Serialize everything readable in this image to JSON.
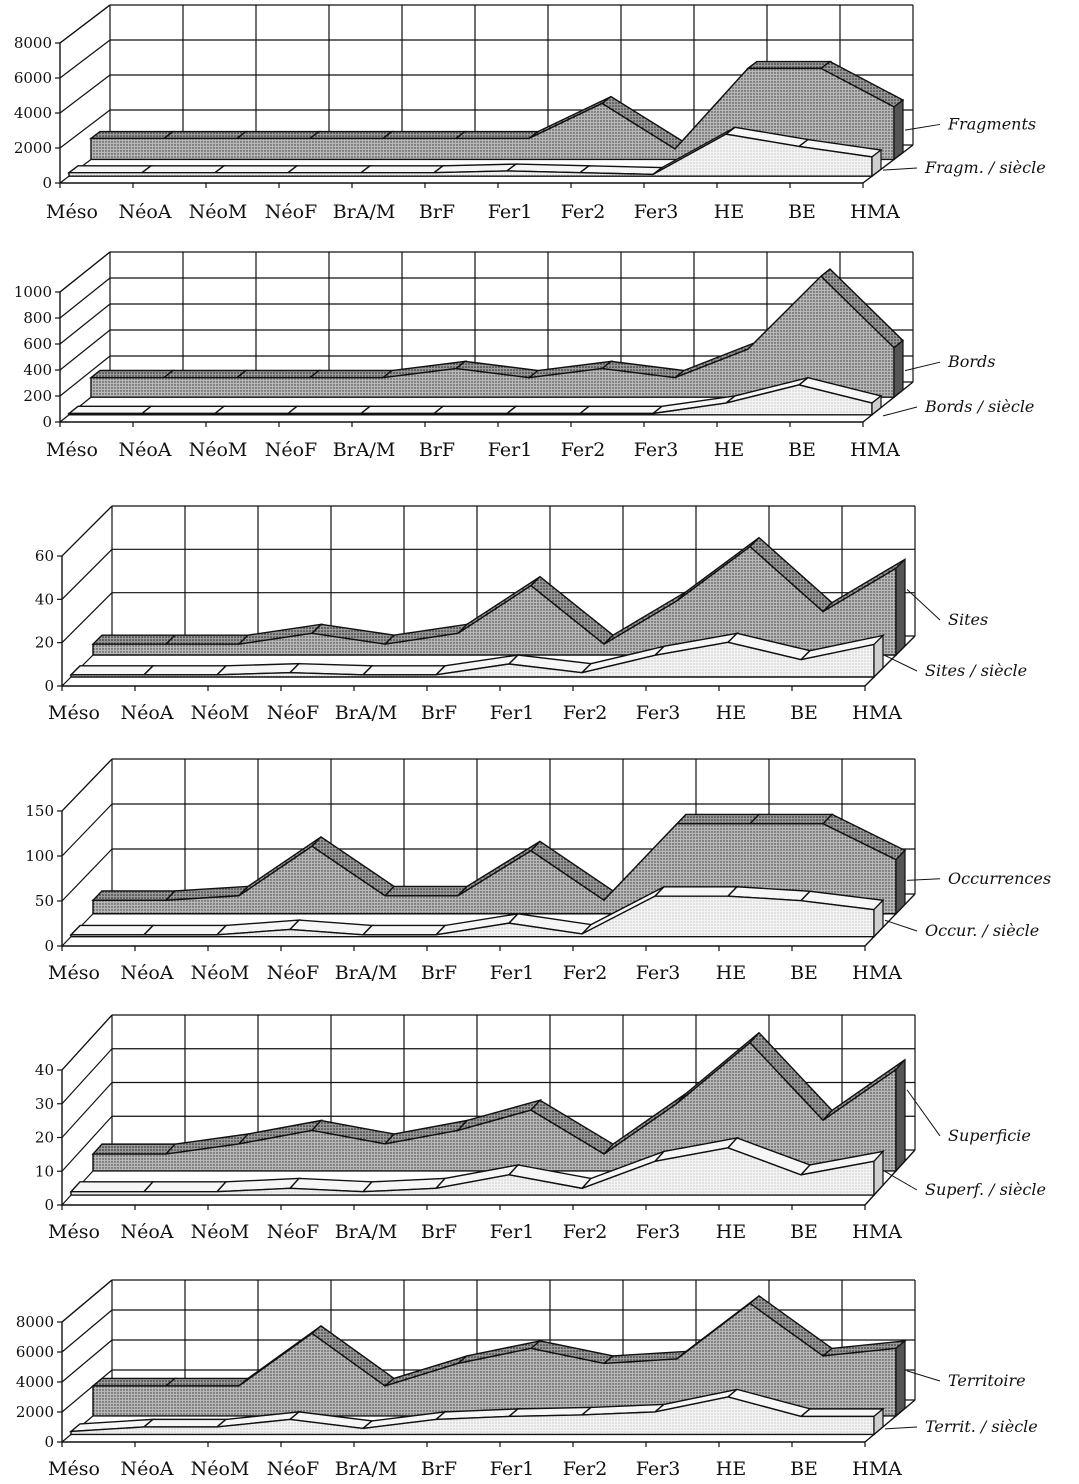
{
  "chart_data": [
    {
      "type": "area",
      "categories": [
        "Méso",
        "NéoA",
        "NéoM",
        "NéoF",
        "BrA/M",
        "BrF",
        "Fer1",
        "Fer2",
        "Fer3",
        "HE",
        "BE",
        "HMA"
      ],
      "yticks": [
        "0",
        "2000",
        "4000",
        "6000",
        "8000"
      ],
      "ylim": [
        0,
        8000
      ],
      "series": [
        {
          "name": "Fragments",
          "values": [
            1200,
            1200,
            1200,
            1200,
            1200,
            1200,
            1200,
            3200,
            600,
            5200,
            5200,
            3000
          ]
        },
        {
          "name": "Fragm. / siècle",
          "values": [
            200,
            200,
            200,
            200,
            200,
            200,
            300,
            200,
            100,
            2400,
            1700,
            1100
          ]
        }
      ]
    },
    {
      "type": "area",
      "categories": [
        "Méso",
        "NéoA",
        "NéoM",
        "NéoF",
        "BrA/M",
        "BrF",
        "Fer1",
        "Fer2",
        "Fer3",
        "HE",
        "BE",
        "HMA"
      ],
      "yticks": [
        "0",
        "200",
        "400",
        "600",
        "800",
        "1000"
      ],
      "ylim": [
        0,
        1000
      ],
      "series": [
        {
          "name": "Bords",
          "values": [
            150,
            150,
            150,
            150,
            150,
            220,
            150,
            220,
            150,
            370,
            930,
            380
          ]
        },
        {
          "name": "Bords / siècle",
          "values": [
            10,
            10,
            10,
            10,
            10,
            10,
            10,
            10,
            10,
            90,
            230,
            90
          ]
        }
      ]
    },
    {
      "type": "area",
      "categories": [
        "Méso",
        "NéoA",
        "NéoM",
        "NéoF",
        "BrA/M",
        "BrF",
        "Fer1",
        "Fer2",
        "Fer3",
        "HE",
        "BE",
        "HMA"
      ],
      "yticks": [
        "0",
        "20",
        "40",
        "60"
      ],
      "ylim": [
        0,
        60
      ],
      "series": [
        {
          "name": "Sites",
          "values": [
            5,
            5,
            5,
            10,
            5,
            10,
            32,
            5,
            25,
            50,
            20,
            40
          ]
        },
        {
          "name": "Sites / siècle",
          "values": [
            1,
            1,
            1,
            2,
            1,
            1,
            6,
            2,
            10,
            16,
            8,
            15
          ]
        }
      ]
    },
    {
      "type": "area",
      "categories": [
        "Méso",
        "NéoA",
        "NéoM",
        "NéoF",
        "BrA/M",
        "BrF",
        "Fer1",
        "Fer2",
        "Fer3",
        "HE",
        "BE",
        "HMA"
      ],
      "yticks": [
        "0",
        "50",
        "100",
        "150"
      ],
      "ylim": [
        0,
        150
      ],
      "series": [
        {
          "name": "Occurrences",
          "values": [
            15,
            15,
            20,
            75,
            20,
            20,
            70,
            15,
            100,
            100,
            100,
            60
          ]
        },
        {
          "name": "Occur. / siècle",
          "values": [
            2,
            2,
            2,
            8,
            2,
            2,
            15,
            3,
            45,
            45,
            40,
            30
          ]
        }
      ]
    },
    {
      "type": "area",
      "categories": [
        "Méso",
        "NéoA",
        "NéoM",
        "NéoF",
        "BrA/M",
        "BrF",
        "Fer1",
        "Fer2",
        "Fer3",
        "HE",
        "BE",
        "HMA"
      ],
      "yticks": [
        "0",
        "10",
        "20",
        "30",
        "40"
      ],
      "ylim": [
        0,
        40
      ],
      "series": [
        {
          "name": "Superficie",
          "values": [
            5,
            5,
            8,
            12,
            8,
            12,
            18,
            5,
            20,
            38,
            15,
            30
          ]
        },
        {
          "name": "Superf. / siècle",
          "values": [
            1,
            1,
            1,
            2,
            1,
            2,
            6,
            2,
            10,
            14,
            6,
            10
          ]
        }
      ]
    },
    {
      "type": "area",
      "categories": [
        "Méso",
        "NéoA",
        "NéoM",
        "NéoF",
        "BrA/M",
        "BrF",
        "Fer1",
        "Fer2",
        "Fer3",
        "HE",
        "BE",
        "HMA"
      ],
      "yticks": [
        "0",
        "2000",
        "4000",
        "6000",
        "8000"
      ],
      "ylim": [
        0,
        8000
      ],
      "series": [
        {
          "name": "Territoire",
          "values": [
            2000,
            2000,
            2000,
            5500,
            2000,
            3500,
            4500,
            3500,
            3800,
            7500,
            4000,
            4500
          ]
        },
        {
          "name": "Territ. / siècle",
          "values": [
            200,
            500,
            500,
            1000,
            400,
            1000,
            1200,
            1300,
            1500,
            2500,
            1200,
            1200
          ]
        }
      ]
    }
  ]
}
